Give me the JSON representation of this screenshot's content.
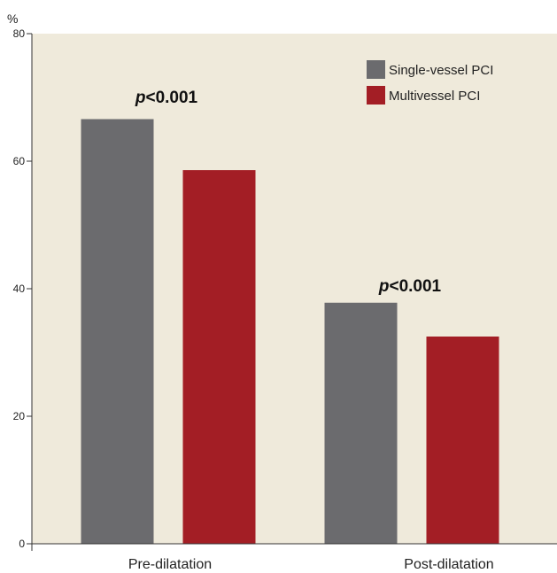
{
  "chart_data": {
    "type": "bar",
    "ylabel": "%",
    "ylim": [
      0,
      80
    ],
    "yticks": [
      0,
      20,
      40,
      60,
      80
    ],
    "categories": [
      "Pre-dilatation",
      "Post-dilatation"
    ],
    "series": [
      {
        "name": "Single-vessel PCI",
        "color": "#6b6b6e",
        "values": [
          66.6,
          37.8
        ]
      },
      {
        "name": "Multivessel PCI",
        "color": "#a31e25",
        "values": [
          58.6,
          32.5
        ]
      }
    ],
    "annotations": [
      {
        "category": "Pre-dilatation",
        "label_italic": "p",
        "label_rest": "<0.001"
      },
      {
        "category": "Post-dilatation",
        "label_italic": "p",
        "label_rest": "<0.001"
      }
    ],
    "legend_position": "top-right",
    "background": "#efeadb"
  }
}
